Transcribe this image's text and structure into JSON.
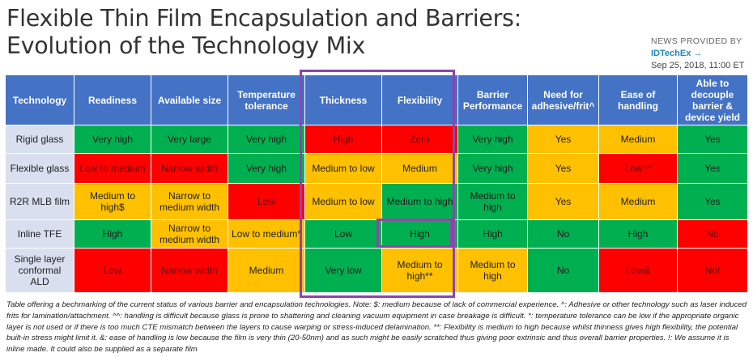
{
  "title_line1": "Flexible Thin Film Encapsulation and Barriers:",
  "title_line2": "Evolution of the Technology Mix",
  "provider": {
    "label": "NEWS PROVIDED BY",
    "source": "IDTechEx",
    "arrow": "→",
    "date": "Sep 25, 2018, 11:00 ET"
  },
  "colors": {
    "green": "#00b050",
    "red": "#ff0000",
    "orange": "#ffc000",
    "header": "#4472c4",
    "highlight": "#8e44ad"
  },
  "table": {
    "headers": [
      "Technology",
      "Readiness",
      "Available size",
      "Temperature tolerance",
      "Thickness",
      "Flexibility",
      "Barrier Performance",
      "Need for adhesive/frit^",
      "Ease of handling",
      "Able to decouple barrier & device yield"
    ],
    "rows": [
      {
        "name": "Rigid glass",
        "cells": [
          {
            "text": "Very high",
            "color": "green"
          },
          {
            "text": "Very large",
            "color": "green"
          },
          {
            "text": "Very high",
            "color": "green"
          },
          {
            "text": "High",
            "color": "red"
          },
          {
            "text": "Zero",
            "color": "red"
          },
          {
            "text": "Very high",
            "color": "green"
          },
          {
            "text": "Yes",
            "color": "orange"
          },
          {
            "text": "Medium",
            "color": "orange"
          },
          {
            "text": "Yes",
            "color": "green"
          }
        ]
      },
      {
        "name": "Flexible glass",
        "cells": [
          {
            "text": "Low to medium",
            "color": "red"
          },
          {
            "text": "Narrow width",
            "color": "red"
          },
          {
            "text": "Very high",
            "color": "green"
          },
          {
            "text": "Medium to low",
            "color": "orange"
          },
          {
            "text": "Medium",
            "color": "orange"
          },
          {
            "text": "Very high",
            "color": "green"
          },
          {
            "text": "Yes",
            "color": "orange"
          },
          {
            "text": "Low^^",
            "color": "red"
          },
          {
            "text": "Yes",
            "color": "green"
          }
        ]
      },
      {
        "name": "R2R MLB film",
        "cells": [
          {
            "text": "Medium to high$",
            "color": "orange"
          },
          {
            "text": "Narrow to medium width",
            "color": "orange"
          },
          {
            "text": "Low",
            "color": "red"
          },
          {
            "text": "Medium to low",
            "color": "orange"
          },
          {
            "text": "Medium to high",
            "color": "green"
          },
          {
            "text": "Medium to high",
            "color": "green"
          },
          {
            "text": "Yes",
            "color": "orange"
          },
          {
            "text": "Medium",
            "color": "orange"
          },
          {
            "text": "Yes",
            "color": "green"
          }
        ]
      },
      {
        "name": "Inline TFE",
        "cells": [
          {
            "text": "High",
            "color": "green"
          },
          {
            "text": "Narrow to medium width",
            "color": "orange"
          },
          {
            "text": "Low to medium*",
            "color": "orange"
          },
          {
            "text": "Low",
            "color": "green"
          },
          {
            "text": "High",
            "color": "green"
          },
          {
            "text": "High",
            "color": "green"
          },
          {
            "text": "No",
            "color": "green"
          },
          {
            "text": "High",
            "color": "green"
          },
          {
            "text": "No",
            "color": "red"
          }
        ]
      },
      {
        "name": "Single layer conformal ALD",
        "cells": [
          {
            "text": "Low",
            "color": "red"
          },
          {
            "text": "Narrow width",
            "color": "red"
          },
          {
            "text": "Medium",
            "color": "orange"
          },
          {
            "text": "Very low",
            "color": "green"
          },
          {
            "text": "Medium to high**",
            "color": "orange"
          },
          {
            "text": "Medium to high",
            "color": "orange"
          },
          {
            "text": "No",
            "color": "green"
          },
          {
            "text": "Low&",
            "color": "red"
          },
          {
            "text": "No!",
            "color": "red"
          }
        ]
      }
    ]
  },
  "caption": "Table offering a bechmarking of the current status of various barrier and encapsulation technologies. Note: $: medium because of lack of commercial experience. ^: Adhesive or other technology such as laser induced frits for lamination/attachment. ^^: handling is difficult because glass is prone to shattering and cleaning vacuum equipment in case breakage is difficult. *: temperature tolerance can be low if the appropriate organic layer is not used or if there is too much CTE mismatch between the layers to cause warping or stress-induced delamination. **: Flexibility is medium to high because whilst thinness gives high flexibility, the potential built-in stress might limit it. &: ease of handling is low because the film is very thin (20-50nm) and as such might be easily scratched thus giving poor extrinsic and thus overall barrier properties. !: We assume it is inline made. It could also be supplied as a separate film"
}
